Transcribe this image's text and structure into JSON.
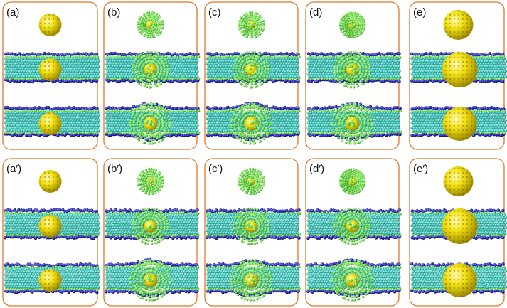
{
  "figure": {
    "panel_border_color": "#e07828",
    "lipid_head_color": "#1a1aa8",
    "lipid_glycerol_color": "#2fa02f",
    "lipid_tail_color": "#3bbfb4",
    "nanoparticle_core_color": "#f2e10e",
    "ligand_color": "#6fe04a",
    "rows": [
      {
        "panels": [
          {
            "label": "(a)",
            "ligands": "none",
            "state_mid": "inserted",
            "state_bottom": "embedded"
          },
          {
            "label": "(b)",
            "ligands": "spiky",
            "state_mid": "inserted",
            "state_bottom": "embedded"
          },
          {
            "label": "(c)",
            "ligands": "spiky",
            "state_mid": "inserted",
            "state_bottom": "embedded"
          },
          {
            "label": "(d)",
            "ligands": "dense",
            "state_mid": "inserted",
            "state_bottom": "embedded"
          },
          {
            "label": "(e)",
            "ligands": "none",
            "state_mid": "inserted",
            "state_bottom": "protruding"
          }
        ]
      },
      {
        "panels": [
          {
            "label": "(a′)",
            "ligands": "none",
            "state_mid": "inserted",
            "state_bottom": "embedded"
          },
          {
            "label": "(b′)",
            "ligands": "spiky",
            "state_mid": "inserted",
            "state_bottom": "embedded"
          },
          {
            "label": "(c′)",
            "ligands": "spiky",
            "state_mid": "inserted",
            "state_bottom": "embedded"
          },
          {
            "label": "(d′)",
            "ligands": "dense",
            "state_mid": "inserted",
            "state_bottom": "embedded"
          },
          {
            "label": "(e′)",
            "ligands": "none",
            "state_mid": "inserted",
            "state_bottom": "protruding"
          }
        ]
      }
    ]
  }
}
